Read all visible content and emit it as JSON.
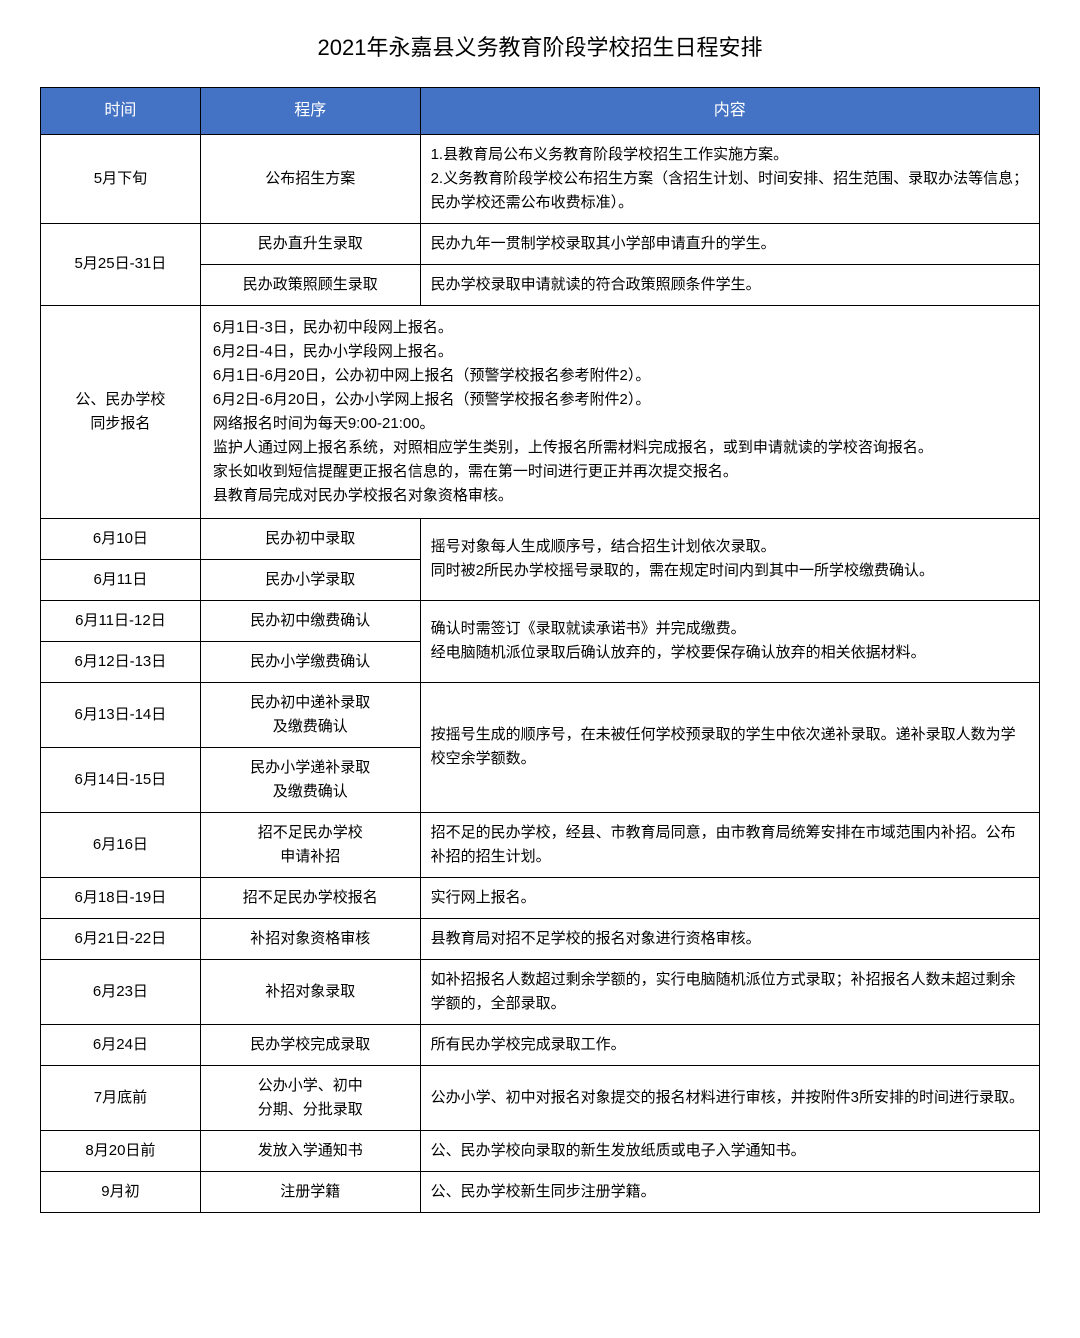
{
  "title": "2021年永嘉县义务教育阶段学校招生日程安排",
  "header": {
    "time": "时间",
    "proc": "程序",
    "content": "内容"
  },
  "style": {
    "header_bg": "#4472c4",
    "header_text": "#ffffff",
    "border_color": "#000000",
    "body_fontsize": 15,
    "title_fontsize": 22,
    "col_widths_pct": [
      16,
      22,
      62
    ]
  },
  "rows": {
    "r1": {
      "time": "5月下旬",
      "proc": "公布招生方案",
      "content": "1.县教育局公布义务教育阶段学校招生工作实施方案。\n2.义务教育阶段学校公布招生方案（含招生计划、时间安排、招生范围、录取办法等信息；民办学校还需公布收费标准）。"
    },
    "r2": {
      "time": "5月25日-31日",
      "proc": "民办直升生录取",
      "content": "民办九年一贯制学校录取其小学部申请直升的学生。"
    },
    "r3": {
      "proc": "民办政策照顾生录取",
      "content": "民办学校录取申请就读的符合政策照顾条件学生。"
    },
    "r4": {
      "time": "公、民办学校\n同步报名",
      "content": "6月1日-3日，民办初中段网上报名。\n6月2日-4日，民办小学段网上报名。\n6月1日-6月20日，公办初中网上报名（预警学校报名参考附件2）。\n6月2日-6月20日，公办小学网上报名（预警学校报名参考附件2）。\n网络报名时间为每天9:00-21:00。\n监护人通过网上报名系统，对照相应学生类别，上传报名所需材料完成报名，或到申请就读的学校咨询报名。\n家长如收到短信提醒更正报名信息的，需在第一时间进行更正并再次提交报名。\n县教育局完成对民办学校报名对象资格审核。"
    },
    "r5": {
      "time": "6月10日",
      "proc": "民办初中录取"
    },
    "r6": {
      "time": "6月11日",
      "proc": "民办小学录取",
      "content_merged": "摇号对象每人生成顺序号，结合招生计划依次录取。\n同时被2所民办学校摇号录取的，需在规定时间内到其中一所学校缴费确认。"
    },
    "r7": {
      "time": "6月11日-12日",
      "proc": "民办初中缴费确认"
    },
    "r8": {
      "time": "6月12日-13日",
      "proc": "民办小学缴费确认",
      "content_merged": "确认时需签订《录取就读承诺书》并完成缴费。\n经电脑随机派位录取后确认放弃的，学校要保存确认放弃的相关依据材料。"
    },
    "r9": {
      "time": "6月13日-14日",
      "proc": "民办初中递补录取\n及缴费确认"
    },
    "r10": {
      "time": "6月14日-15日",
      "proc": "民办小学递补录取\n及缴费确认",
      "content_merged": "按摇号生成的顺序号，在未被任何学校预录取的学生中依次递补录取。递补录取人数为学校空余学额数。"
    },
    "r11": {
      "time": "6月16日",
      "proc": "招不足民办学校\n申请补招",
      "content": "招不足的民办学校，经县、市教育局同意，由市教育局统筹安排在市域范围内补招。公布补招的招生计划。"
    },
    "r12": {
      "time": "6月18日-19日",
      "proc": "招不足民办学校报名",
      "content": "实行网上报名。"
    },
    "r13": {
      "time": "6月21日-22日",
      "proc": "补招对象资格审核",
      "content": "县教育局对招不足学校的报名对象进行资格审核。"
    },
    "r14": {
      "time": "6月23日",
      "proc": "补招对象录取",
      "content": "如补招报名人数超过剩余学额的，实行电脑随机派位方式录取；补招报名人数未超过剩余学额的，全部录取。"
    },
    "r15": {
      "time": "6月24日",
      "proc": "民办学校完成录取",
      "content": "所有民办学校完成录取工作。"
    },
    "r16": {
      "time": "7月底前",
      "proc": "公办小学、初中\n分期、分批录取",
      "content": "公办小学、初中对报名对象提交的报名材料进行审核，并按附件3所安排的时间进行录取。"
    },
    "r17": {
      "time": "8月20日前",
      "proc": "发放入学通知书",
      "content": "公、民办学校向录取的新生发放纸质或电子入学通知书。"
    },
    "r18": {
      "time": "9月初",
      "proc": "注册学籍",
      "content": "公、民办学校新生同步注册学籍。"
    }
  }
}
